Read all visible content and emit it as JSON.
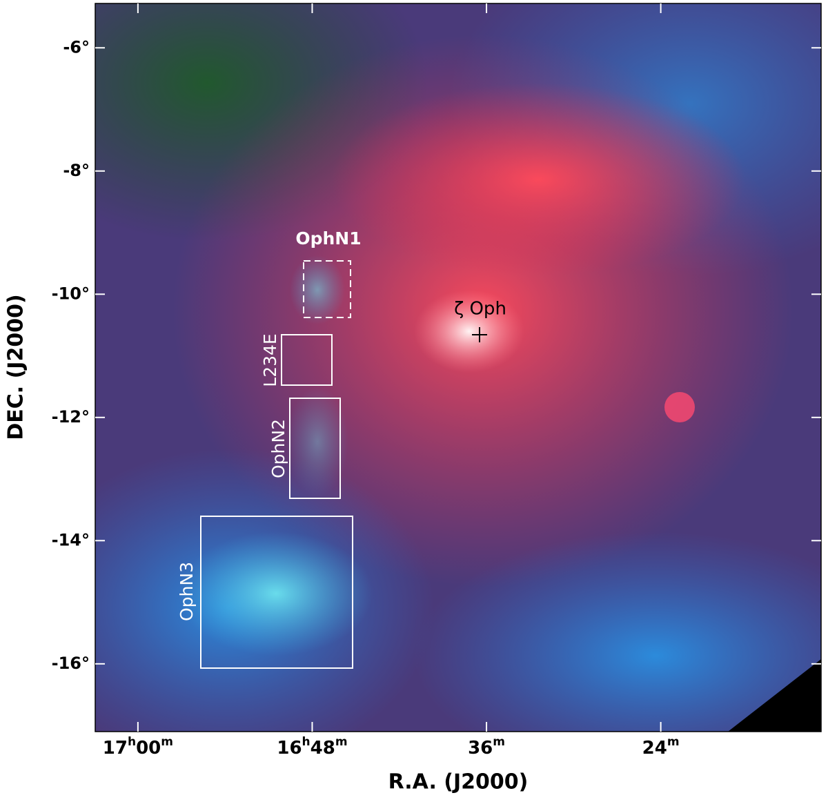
{
  "figure": {
    "ylabel": "DEC. (J2000)",
    "xlabel": "R.A. (J2000)",
    "xlim": [
      17.049,
      16.216
    ],
    "ylim": [
      -5.28,
      -17.1
    ],
    "yticks": [
      {
        "value": -6,
        "label": "-6°"
      },
      {
        "value": -8,
        "label": "-8°"
      },
      {
        "value": -10,
        "label": "-10°"
      },
      {
        "value": -12,
        "label": "-12°"
      },
      {
        "value": -14,
        "label": "-14°"
      },
      {
        "value": -16,
        "label": "-16°"
      }
    ],
    "xticks": [
      {
        "value": 17.0,
        "label": [
          "17",
          "h",
          "00",
          "m"
        ]
      },
      {
        "value": 16.8,
        "label": [
          "16",
          "h",
          "48",
          "m"
        ]
      },
      {
        "value": 16.6,
        "label": [
          "36",
          "m"
        ]
      },
      {
        "value": 16.4,
        "label": [
          "24",
          "m"
        ]
      }
    ]
  },
  "annotations": {
    "regions": [
      "OphN1",
      "L234E",
      "OphN2",
      "OphN3"
    ],
    "star": "ζ Oph"
  }
}
